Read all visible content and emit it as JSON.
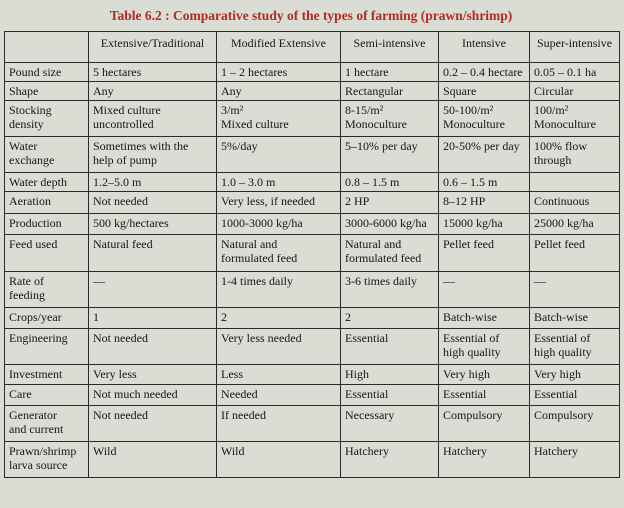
{
  "title": "Table 6.2 : Comparative study of the types of farming (prawn/shrimp)",
  "columns": [
    "",
    "Extensive/Traditional",
    "Modified Extensive",
    "Semi-intensive",
    "Intensive",
    "Super-intensive"
  ],
  "rows": [
    {
      "name": "pound-size",
      "cells": [
        [
          "Pound size"
        ],
        [
          "5 hectares"
        ],
        [
          "1 – 2 hectares"
        ],
        [
          "1 hectare"
        ],
        [
          "0.2 – 0.4 hectare"
        ],
        [
          "0.05 – 0.1 ha"
        ]
      ]
    },
    {
      "name": "shape",
      "cells": [
        [
          "Shape"
        ],
        [
          "Any"
        ],
        [
          "Any"
        ],
        [
          "Rectangular"
        ],
        [
          "Square"
        ],
        [
          "Circular"
        ]
      ]
    },
    {
      "name": "stocking-density",
      "cells": [
        [
          "Stocking",
          "density"
        ],
        [
          "Mixed culture",
          "uncontrolled"
        ],
        [
          "3/m²",
          "Mixed culture"
        ],
        [
          "8-15/m²",
          "Monoculture"
        ],
        [
          "50-100/m²",
          "Monoculture"
        ],
        [
          "100/m²",
          "Monoculture"
        ]
      ]
    },
    {
      "name": "water-exchange",
      "cells": [
        [
          "Water",
          "exchange"
        ],
        [
          "Sometimes with the",
          "help of pump"
        ],
        [
          "5%/day"
        ],
        [
          "5–10% per day"
        ],
        [
          "20-50% per day"
        ],
        [
          "100% flow",
          "through"
        ]
      ]
    },
    {
      "name": "water-depth",
      "cells": [
        [
          "Water depth"
        ],
        [
          "1.2–5.0 m"
        ],
        [
          "1.0 – 3.0 m"
        ],
        [
          "0.8 – 1.5 m"
        ],
        [
          "0.6 – 1.5 m"
        ],
        [
          ""
        ]
      ]
    },
    {
      "name": "aeration",
      "cells": [
        [
          "Aeration"
        ],
        [
          "Not needed"
        ],
        [
          "Very less, if needed"
        ],
        [
          "2 HP"
        ],
        [
          "8–12 HP"
        ],
        [
          "Continuous"
        ]
      ]
    },
    {
      "name": "production",
      "cells": [
        [
          "Production"
        ],
        [
          "500 kg/hectares"
        ],
        [
          "1000-3000 kg/ha"
        ],
        [
          "3000-6000 kg/ha"
        ],
        [
          "15000 kg/ha"
        ],
        [
          "25000 kg/ha"
        ]
      ]
    },
    {
      "name": "feed-used",
      "cells": [
        [
          "Feed used"
        ],
        [
          "Natural feed"
        ],
        [
          "Natural and",
          "formulated feed"
        ],
        [
          "Natural and",
          "formulated feed"
        ],
        [
          "Pellet feed"
        ],
        [
          "Pellet feed"
        ]
      ]
    },
    {
      "name": "rate-of-feeding",
      "cells": [
        [
          "Rate of",
          "feeding"
        ],
        [
          "—"
        ],
        [
          "1-4 times daily"
        ],
        [
          "3-6 times daily"
        ],
        [
          "—"
        ],
        [
          "—"
        ]
      ]
    },
    {
      "name": "crops-year",
      "cells": [
        [
          "Crops/year"
        ],
        [
          "1"
        ],
        [
          "2"
        ],
        [
          "2"
        ],
        [
          "Batch-wise"
        ],
        [
          "Batch-wise"
        ]
      ]
    },
    {
      "name": "engineering",
      "cells": [
        [
          "Engineering"
        ],
        [
          "Not needed"
        ],
        [
          "Very less needed"
        ],
        [
          "Essential"
        ],
        [
          "Essential of",
          "high quality"
        ],
        [
          "Essential of",
          "high quality"
        ]
      ]
    },
    {
      "name": "investment",
      "cells": [
        [
          "Investment"
        ],
        [
          "Very less"
        ],
        [
          "Less"
        ],
        [
          "High"
        ],
        [
          "Very high"
        ],
        [
          "Very high"
        ]
      ]
    },
    {
      "name": "care",
      "cells": [
        [
          "Care"
        ],
        [
          "Not much needed"
        ],
        [
          "Needed"
        ],
        [
          "Essential"
        ],
        [
          "Essential"
        ],
        [
          "Essential"
        ]
      ]
    },
    {
      "name": "generator-and-current",
      "cells": [
        [
          "Generator",
          "and current"
        ],
        [
          "Not needed"
        ],
        [
          "If needed"
        ],
        [
          "Necessary"
        ],
        [
          "Compulsory"
        ],
        [
          "Compulsory"
        ]
      ]
    },
    {
      "name": "larva-source",
      "cells": [
        [
          "Prawn/shrimp",
          "larva source"
        ],
        [
          "Wild"
        ],
        [
          "Wild"
        ],
        [
          "Hatchery"
        ],
        [
          "Hatchery"
        ],
        [
          "Hatchery"
        ]
      ]
    }
  ],
  "colors": {
    "title": "#b22a23",
    "border": "#2a2a2a",
    "background": "#d9ddd3"
  }
}
